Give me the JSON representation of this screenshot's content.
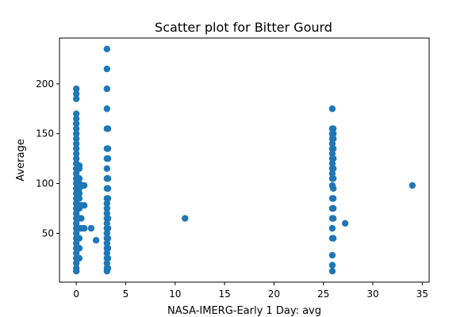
{
  "chart_data": {
    "type": "scatter",
    "title": "Scatter plot for Bitter Gourd",
    "xlabel": "NASA-IMERG-Early 1 Day: avg",
    "ylabel": "Average",
    "xlim": [
      -1.7,
      35.7
    ],
    "ylim": [
      1.0,
      246.0
    ],
    "xticks": [
      0,
      5,
      10,
      15,
      20,
      25,
      30,
      35
    ],
    "yticks": [
      50,
      100,
      150,
      200
    ],
    "grid": false,
    "legend": "none",
    "color": "#1f77b4",
    "series": [
      {
        "points": [
          [
            0,
            195
          ],
          [
            0,
            190
          ],
          [
            0,
            185
          ],
          [
            0,
            170
          ],
          [
            0,
            165
          ],
          [
            0,
            160
          ],
          [
            0,
            155
          ],
          [
            0,
            150
          ],
          [
            0,
            145
          ],
          [
            0,
            140
          ],
          [
            0,
            135
          ],
          [
            0,
            130
          ],
          [
            0,
            125
          ],
          [
            0,
            120
          ],
          [
            0,
            115
          ],
          [
            0,
            110
          ],
          [
            0,
            105
          ],
          [
            0,
            100
          ],
          [
            0,
            95
          ],
          [
            0,
            90
          ],
          [
            0,
            85
          ],
          [
            0,
            80
          ],
          [
            0,
            75
          ],
          [
            0,
            70
          ],
          [
            0,
            65
          ],
          [
            0,
            60
          ],
          [
            0,
            55
          ],
          [
            0,
            50
          ],
          [
            0,
            45
          ],
          [
            0,
            40
          ],
          [
            0,
            35
          ],
          [
            0,
            30
          ],
          [
            0,
            25
          ],
          [
            0,
            20
          ],
          [
            0,
            15
          ],
          [
            0,
            12
          ],
          [
            0.3,
            118
          ],
          [
            0.3,
            115
          ],
          [
            0.3,
            105
          ],
          [
            0.3,
            100
          ],
          [
            0.3,
            95
          ],
          [
            0.3,
            90
          ],
          [
            0.3,
            85
          ],
          [
            0.3,
            78
          ],
          [
            0.3,
            75
          ],
          [
            0.3,
            65
          ],
          [
            0.3,
            55
          ],
          [
            0.3,
            45
          ],
          [
            0.3,
            35
          ],
          [
            0.3,
            25
          ],
          [
            0.4,
            98
          ],
          [
            0.5,
            78
          ],
          [
            0.5,
            65
          ],
          [
            0.5,
            55
          ],
          [
            0.6,
            98
          ],
          [
            0.8,
            98
          ],
          [
            0.8,
            78
          ],
          [
            0.8,
            55
          ],
          [
            1.5,
            55
          ],
          [
            2.0,
            43
          ],
          [
            3.1,
            235
          ],
          [
            3.1,
            215
          ],
          [
            3.1,
            195
          ],
          [
            3.1,
            175
          ],
          [
            3.1,
            155
          ],
          [
            3.1,
            135
          ],
          [
            3.1,
            125
          ],
          [
            3.1,
            115
          ],
          [
            3.1,
            105
          ],
          [
            3.1,
            95
          ],
          [
            3.1,
            85
          ],
          [
            3.1,
            80
          ],
          [
            3.1,
            75
          ],
          [
            3.1,
            70
          ],
          [
            3.1,
            65
          ],
          [
            3.1,
            60
          ],
          [
            3.1,
            55
          ],
          [
            3.1,
            50
          ],
          [
            3.1,
            45
          ],
          [
            3.1,
            40
          ],
          [
            3.1,
            35
          ],
          [
            3.1,
            30
          ],
          [
            3.1,
            25
          ],
          [
            3.1,
            20
          ],
          [
            3.1,
            15
          ],
          [
            3.1,
            12
          ],
          [
            3.2,
            155
          ],
          [
            3.2,
            135
          ],
          [
            3.2,
            125
          ],
          [
            3.2,
            105
          ],
          [
            3.2,
            95
          ],
          [
            3.2,
            85
          ],
          [
            3.2,
            65
          ],
          [
            3.2,
            55
          ],
          [
            3.2,
            45
          ],
          [
            3.2,
            35
          ],
          [
            3.2,
            25
          ],
          [
            3.2,
            15
          ],
          [
            11,
            65
          ],
          [
            25.9,
            175
          ],
          [
            25.9,
            155
          ],
          [
            25.9,
            150
          ],
          [
            25.9,
            145
          ],
          [
            25.9,
            140
          ],
          [
            25.9,
            135
          ],
          [
            25.9,
            130
          ],
          [
            25.9,
            125
          ],
          [
            25.9,
            120
          ],
          [
            25.9,
            115
          ],
          [
            25.9,
            110
          ],
          [
            25.9,
            105
          ],
          [
            25.9,
            98
          ],
          [
            25.9,
            85
          ],
          [
            25.9,
            75
          ],
          [
            25.9,
            65
          ],
          [
            25.9,
            55
          ],
          [
            25.9,
            45
          ],
          [
            25.9,
            28
          ],
          [
            25.9,
            18
          ],
          [
            25.9,
            12
          ],
          [
            26.0,
            155
          ],
          [
            26.0,
            150
          ],
          [
            26.0,
            145
          ],
          [
            26.0,
            135
          ],
          [
            26.0,
            125
          ],
          [
            26.0,
            115
          ],
          [
            26.0,
            105
          ],
          [
            26.0,
            95
          ],
          [
            26.0,
            85
          ],
          [
            26.0,
            75
          ],
          [
            26.0,
            65
          ],
          [
            26.0,
            45
          ],
          [
            27.2,
            60
          ],
          [
            34,
            98
          ]
        ]
      }
    ]
  }
}
